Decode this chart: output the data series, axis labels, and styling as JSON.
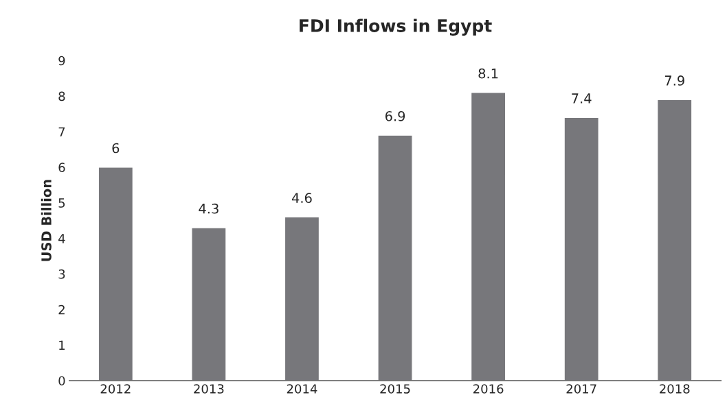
{
  "chart_data": {
    "type": "bar",
    "title": "FDI Inflows in Egypt",
    "ylabel": "USD Billion",
    "categories": [
      "2012",
      "2013",
      "2014",
      "2015",
      "2016",
      "2017",
      "2018"
    ],
    "values": [
      6,
      4.3,
      4.6,
      6.9,
      8.1,
      7.4,
      7.9
    ],
    "color": "#77777b",
    "ylim": [
      0,
      9
    ],
    "yticks": [
      0,
      1,
      2,
      3,
      4,
      5,
      6,
      7,
      8,
      9
    ],
    "data_labels": true,
    "grid": false,
    "legend": false
  }
}
